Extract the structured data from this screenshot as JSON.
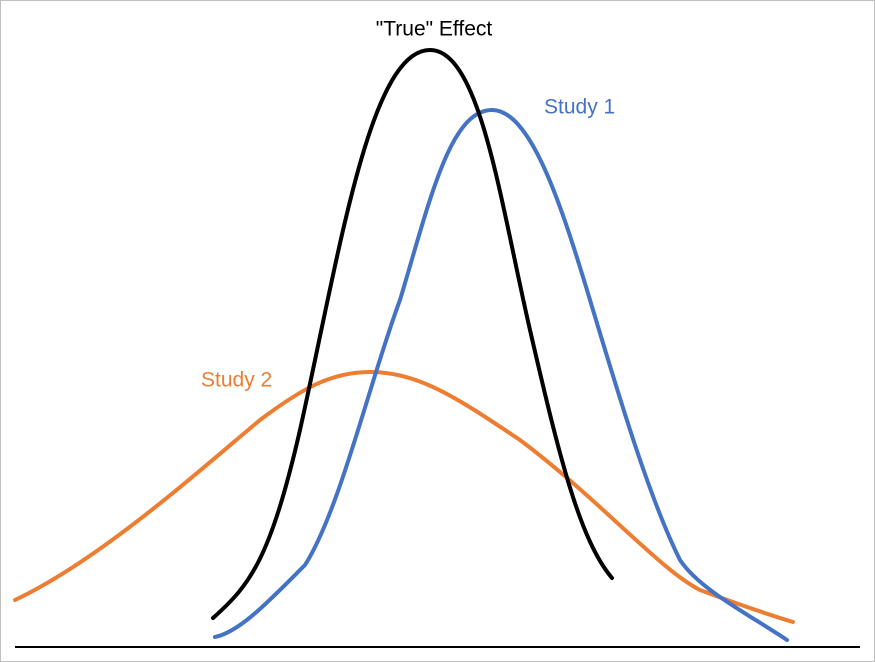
{
  "curves": [
    {
      "label": "\"True\" Effect",
      "color": "#000000"
    },
    {
      "label": "Study 1",
      "color": "#4472c4"
    },
    {
      "label": "Study 2",
      "color": "#ed7d31"
    }
  ]
}
